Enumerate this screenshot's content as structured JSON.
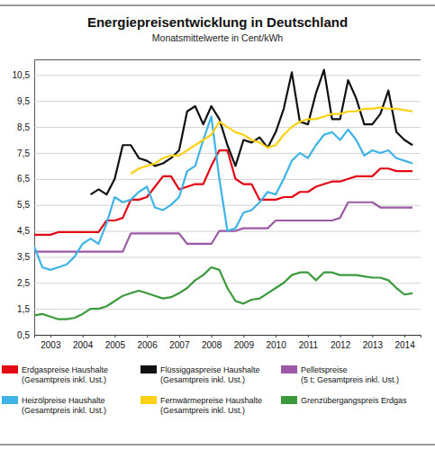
{
  "chart_data": {
    "type": "line",
    "title": "Energiepreisentwicklung in Deutschland",
    "subtitle": "Monatsmittelwerte in Cent/kWh",
    "x": [
      2003,
      2003.25,
      2003.5,
      2003.75,
      2004,
      2004.25,
      2004.5,
      2004.75,
      2005,
      2005.25,
      2005.5,
      2005.75,
      2006,
      2006.25,
      2006.5,
      2006.75,
      2007,
      2007.25,
      2007.5,
      2007.75,
      2008,
      2008.25,
      2008.5,
      2008.75,
      2009,
      2009.25,
      2009.5,
      2009.75,
      2010,
      2010.25,
      2010.5,
      2010.75,
      2011,
      2011.25,
      2011.5,
      2011.75,
      2012,
      2012.25,
      2012.5,
      2012.75,
      2013,
      2013.25,
      2013.5,
      2013.75,
      2014,
      2014.25,
      2014.5,
      2014.75
    ],
    "xlim": [
      2003,
      2015
    ],
    "xticks": [
      {
        "value": 2003.5,
        "label": "2003"
      },
      {
        "value": 2004.5,
        "label": "2004"
      },
      {
        "value": 2005.5,
        "label": "2005"
      },
      {
        "value": 2006.5,
        "label": "2006"
      },
      {
        "value": 2007.5,
        "label": "2007"
      },
      {
        "value": 2008.5,
        "label": "2008"
      },
      {
        "value": 2009.5,
        "label": "2009"
      },
      {
        "value": 2010.5,
        "label": "2010"
      },
      {
        "value": 2011.5,
        "label": "2011"
      },
      {
        "value": 2012.5,
        "label": "2012"
      },
      {
        "value": 2013.5,
        "label": "2013"
      },
      {
        "value": 2014.5,
        "label": "2014"
      }
    ],
    "ylim": [
      0.5,
      11.1
    ],
    "yticks": [
      {
        "value": 0.5,
        "label": "0,5"
      },
      {
        "value": 1.5,
        "label": "1,5"
      },
      {
        "value": 2.5,
        "label": "2,5"
      },
      {
        "value": 3.5,
        "label": "3,5"
      },
      {
        "value": 4.5,
        "label": "4,5"
      },
      {
        "value": 5.5,
        "label": "5,5"
      },
      {
        "value": 6.5,
        "label": "6,5"
      },
      {
        "value": 7.5,
        "label": "7,5"
      },
      {
        "value": 8.5,
        "label": "8,5"
      },
      {
        "value": 9.5,
        "label": "9,5"
      },
      {
        "value": 10.5,
        "label": "10,5"
      }
    ],
    "grid": true,
    "legend": "bottom",
    "series": [
      {
        "name": "Erdgaspreise Haushalte\n(Gesamtpreis inkl. Ust.)",
        "color": "#e30613",
        "values": [
          4.35,
          4.35,
          4.35,
          4.45,
          4.45,
          4.45,
          4.45,
          4.45,
          4.45,
          4.9,
          4.9,
          5.0,
          5.7,
          5.7,
          5.8,
          6.2,
          6.6,
          6.6,
          6.1,
          6.2,
          6.3,
          6.3,
          7.0,
          7.6,
          7.6,
          6.5,
          6.3,
          6.3,
          5.7,
          5.7,
          5.7,
          5.8,
          5.8,
          6.0,
          6.0,
          6.2,
          6.3,
          6.4,
          6.4,
          6.5,
          6.6,
          6.6,
          6.6,
          6.9,
          6.9,
          6.8,
          6.8,
          6.8
        ]
      },
      {
        "name": "Flüssiggaspreise Haushalte\n(Gesamtpreis inkl. Ust.)",
        "color": "#111111",
        "values": [
          null,
          null,
          null,
          null,
          null,
          null,
          null,
          5.9,
          6.1,
          5.9,
          6.5,
          7.8,
          7.8,
          7.3,
          7.2,
          7.0,
          7.1,
          7.3,
          7.6,
          9.1,
          9.3,
          8.6,
          9.3,
          8.8,
          7.8,
          7.0,
          8.0,
          7.9,
          8.1,
          7.7,
          8.3,
          9.2,
          10.6,
          8.7,
          8.6,
          9.8,
          10.7,
          8.8,
          8.8,
          10.3,
          9.6,
          8.6,
          8.6,
          9.0,
          9.9,
          8.3,
          8.0,
          7.8
        ]
      },
      {
        "name": "Pelletspreise\n(5 t; Gesamtpreis inkl. Ust.)",
        "color": "#9b59a6",
        "values": [
          3.7,
          3.7,
          3.7,
          3.7,
          3.7,
          3.7,
          3.7,
          3.7,
          3.7,
          3.7,
          3.7,
          3.7,
          4.4,
          4.4,
          4.4,
          4.4,
          4.4,
          4.4,
          4.4,
          4.0,
          4.0,
          4.0,
          4.0,
          4.5,
          4.5,
          4.5,
          4.6,
          4.6,
          4.6,
          4.6,
          4.9,
          4.9,
          4.9,
          4.9,
          4.9,
          4.9,
          4.9,
          4.9,
          5.0,
          5.6,
          5.6,
          5.6,
          5.6,
          5.4,
          5.4,
          5.4,
          5.4,
          5.4
        ]
      },
      {
        "name": "Heizölpreise Haushalte\n(Gesamtpreis inkl. Ust.)",
        "color": "#3db3e6",
        "values": [
          3.9,
          3.1,
          3.0,
          3.1,
          3.2,
          3.5,
          4.0,
          4.2,
          4.0,
          4.8,
          5.8,
          5.6,
          5.7,
          6.0,
          6.2,
          5.4,
          5.3,
          5.5,
          5.8,
          6.8,
          7.0,
          8.0,
          8.9,
          6.5,
          4.5,
          4.6,
          5.2,
          5.3,
          5.6,
          6.0,
          5.9,
          6.5,
          7.2,
          7.5,
          7.3,
          7.8,
          8.2,
          8.3,
          8.0,
          8.4,
          8.0,
          7.4,
          7.6,
          7.5,
          7.6,
          7.3,
          7.2,
          7.1
        ]
      },
      {
        "name": "Fernwärmepreise Haushalte\n(Gesamtpreis inkl. Ust.)",
        "color": "#fcd116",
        "values": [
          null,
          null,
          null,
          null,
          null,
          null,
          null,
          null,
          null,
          null,
          null,
          null,
          6.7,
          6.9,
          7.0,
          7.1,
          7.3,
          7.4,
          7.4,
          7.6,
          7.8,
          8.0,
          8.2,
          8.7,
          8.5,
          8.3,
          8.2,
          8.0,
          7.9,
          7.7,
          7.8,
          8.2,
          8.5,
          8.7,
          8.8,
          8.8,
          8.9,
          9.0,
          9.0,
          9.1,
          9.1,
          9.2,
          9.2,
          9.25,
          9.2,
          9.2,
          9.15,
          9.1
        ]
      },
      {
        "name": "Grenzübergangspreis Erdgas",
        "color": "#3a9a3c",
        "values": [
          1.25,
          1.3,
          1.2,
          1.1,
          1.1,
          1.15,
          1.3,
          1.5,
          1.5,
          1.6,
          1.8,
          2.0,
          2.1,
          2.2,
          2.1,
          2.0,
          1.9,
          1.95,
          2.1,
          2.3,
          2.6,
          2.8,
          3.1,
          3.0,
          2.3,
          1.8,
          1.7,
          1.85,
          1.9,
          2.1,
          2.3,
          2.5,
          2.8,
          2.9,
          2.9,
          2.6,
          2.9,
          2.9,
          2.8,
          2.8,
          2.8,
          2.75,
          2.7,
          2.7,
          2.6,
          2.3,
          2.05,
          2.1
        ]
      }
    ]
  }
}
